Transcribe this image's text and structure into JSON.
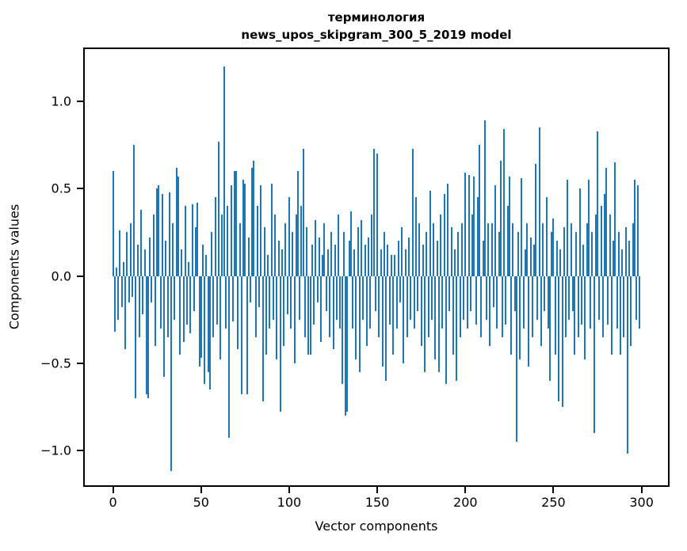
{
  "chart": {
    "title_line1": "терминология",
    "title_line2": "news_upos_skipgram_300_5_2019 model",
    "xlabel": "Vector components",
    "ylabel": "Components values"
  },
  "chart_data": {
    "type": "bar",
    "title": "терминология\nnews_upos_skipgram_300_5_2019 model",
    "xlabel": "Vector components",
    "ylabel": "Components values",
    "bar_color": "#1f77b4",
    "xlim": [
      -16,
      315
    ],
    "ylim": [
      -1.2,
      1.3
    ],
    "xticks": [
      0,
      50,
      100,
      150,
      200,
      250,
      300
    ],
    "yticks": [
      1.0,
      0.5,
      0.0,
      -0.5,
      -1.0
    ],
    "grid": false,
    "legend": "none",
    "values": [
      0.6,
      -0.32,
      0.05,
      -0.25,
      0.26,
      -0.18,
      0.08,
      -0.42,
      0.25,
      -0.15,
      0.3,
      -0.12,
      0.75,
      -0.7,
      0.18,
      -0.35,
      0.38,
      -0.22,
      0.15,
      -0.68,
      -0.7,
      0.22,
      -0.15,
      0.35,
      -0.4,
      0.5,
      0.52,
      -0.3,
      0.47,
      -0.58,
      0.2,
      -0.35,
      0.48,
      -1.12,
      0.3,
      -0.25,
      0.62,
      0.57,
      -0.45,
      0.15,
      -0.38,
      0.4,
      -0.28,
      0.08,
      -0.33,
      0.41,
      -0.2,
      0.28,
      0.42,
      -0.52,
      -0.47,
      0.18,
      -0.62,
      0.12,
      -0.55,
      -0.65,
      0.25,
      -0.35,
      0.45,
      -0.28,
      0.77,
      -0.48,
      0.35,
      1.2,
      -0.3,
      0.4,
      -0.93,
      0.52,
      -0.26,
      0.6,
      0.6,
      -0.42,
      0.3,
      -0.68,
      0.55,
      0.53,
      -0.68,
      0.22,
      -0.15,
      0.62,
      0.66,
      -0.35,
      0.4,
      -0.18,
      0.52,
      -0.72,
      0.28,
      -0.45,
      0.12,
      -0.3,
      0.53,
      -0.25,
      0.35,
      -0.48,
      0.2,
      -0.78,
      0.15,
      -0.4,
      0.3,
      -0.22,
      0.45,
      -0.3,
      0.25,
      -0.5,
      0.35,
      0.6,
      -0.25,
      0.4,
      0.73,
      -0.35,
      0.28,
      -0.45,
      -0.45,
      0.18,
      -0.28,
      0.32,
      -0.15,
      0.22,
      -0.38,
      0.12,
      0.3,
      -0.2,
      0.15,
      -0.35,
      0.25,
      -0.42,
      0.18,
      -0.25,
      0.35,
      -0.3,
      -0.62,
      0.25,
      -0.8,
      -0.78,
      0.2,
      0.37,
      -0.3,
      0.15,
      -0.48,
      0.28,
      -0.55,
      0.32,
      -0.25,
      0.18,
      -0.4,
      0.22,
      -0.3,
      0.35,
      0.73,
      -0.2,
      0.7,
      -0.35,
      0.15,
      -0.52,
      0.25,
      -0.6,
      0.18,
      -0.28,
      0.12,
      -0.45,
      0.12,
      -0.3,
      0.2,
      -0.15,
      0.28,
      -0.5,
      0.15,
      -0.35,
      0.22,
      -0.25,
      0.73,
      -0.3,
      0.45,
      -0.2,
      0.3,
      -0.4,
      0.18,
      -0.55,
      0.25,
      -0.35,
      0.49,
      -0.25,
      0.3,
      -0.48,
      0.2,
      -0.55,
      0.35,
      -0.3,
      0.47,
      -0.62,
      0.53,
      -0.2,
      0.28,
      -0.45,
      0.15,
      -0.6,
      0.25,
      -0.35,
      0.3,
      -0.25,
      0.59,
      -0.3,
      0.58,
      -0.2,
      0.35,
      0.57,
      -0.28,
      0.45,
      0.75,
      -0.35,
      0.2,
      0.89,
      -0.25,
      0.3,
      -0.4,
      0.3,
      -0.18,
      0.52,
      -0.3,
      0.25,
      0.66,
      -0.35,
      0.84,
      -0.28,
      0.4,
      0.57,
      -0.45,
      0.3,
      -0.2,
      -0.95,
      0.25,
      -0.48,
      0.56,
      -0.3,
      0.15,
      0.3,
      -0.52,
      0.22,
      -0.35,
      0.18,
      0.64,
      -0.25,
      0.85,
      -0.4,
      0.3,
      -0.2,
      0.45,
      -0.3,
      -0.6,
      0.25,
      0.33,
      -0.45,
      0.2,
      -0.72,
      0.15,
      -0.75,
      0.28,
      -0.35,
      0.55,
      -0.25,
      0.3,
      -0.2,
      -0.45,
      0.25,
      -0.35,
      0.5,
      -0.28,
      0.18,
      -0.48,
      0.3,
      0.55,
      -0.3,
      0.25,
      -0.9,
      0.35,
      0.83,
      -0.25,
      0.4,
      -0.35,
      0.47,
      0.62,
      -0.28,
      0.35,
      -0.45,
      0.2,
      0.65,
      -0.3,
      0.25,
      -0.45,
      0.15,
      -0.35,
      0.28,
      -1.02,
      0.2,
      -0.4,
      0.3,
      0.55,
      -0.25,
      0.52,
      -0.3
    ]
  }
}
